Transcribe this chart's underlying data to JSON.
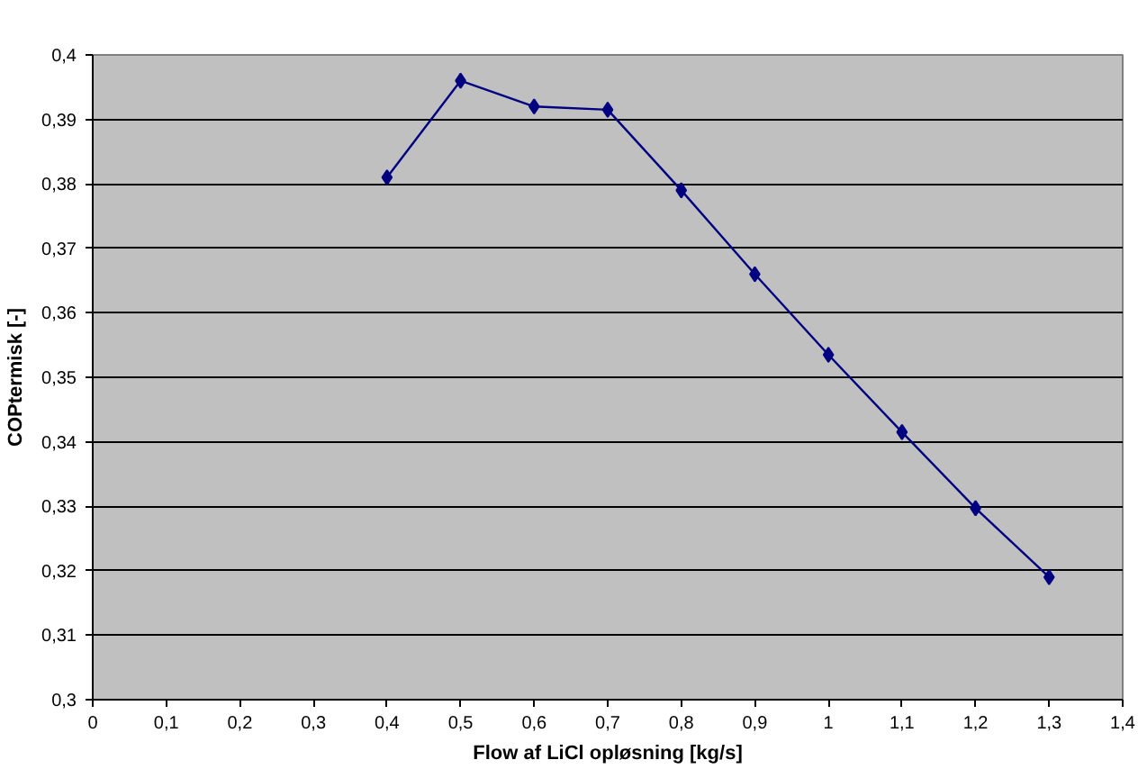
{
  "chart_data": {
    "type": "line",
    "xlabel": "Flow af LiCl opløsning [kg/s]",
    "ylabel": "COPtermisk [-]",
    "x": [
      0.4,
      0.5,
      0.6,
      0.7,
      0.8,
      0.9,
      1.0,
      1.1,
      1.2,
      1.3
    ],
    "series": [
      {
        "color": "#000080",
        "values": [
          0.381,
          0.396,
          0.392,
          0.3915,
          0.379,
          0.366,
          0.3535,
          0.3415,
          0.3297,
          0.319
        ]
      }
    ],
    "xlim": [
      0,
      1.4
    ],
    "ylim": [
      0.3,
      0.4
    ],
    "xticks": [
      0,
      {
        "value": 0.1,
        "label": "0,1"
      },
      {
        "value": 0.2,
        "label": "0,2"
      },
      {
        "value": 0.3,
        "label": "0,3"
      },
      {
        "value": 0.4,
        "label": "0,4"
      },
      {
        "value": 0.5,
        "label": "0,5"
      },
      {
        "value": 0.6,
        "label": "0,6"
      },
      {
        "value": 0.7,
        "label": "0,7"
      },
      {
        "value": 0.8,
        "label": "0,8"
      },
      {
        "value": 0.9,
        "label": "0,9"
      },
      1,
      {
        "value": 1.1,
        "label": "1,1"
      },
      {
        "value": 1.2,
        "label": "1,2"
      },
      {
        "value": 1.3,
        "label": "1,3"
      },
      {
        "value": 1.4,
        "label": "1,4"
      }
    ],
    "yticks": [
      {
        "value": 0.3,
        "label": "0,3"
      },
      {
        "value": 0.31,
        "label": "0,31"
      },
      {
        "value": 0.32,
        "label": "0,32"
      },
      {
        "value": 0.33,
        "label": "0,33"
      },
      {
        "value": 0.34,
        "label": "0,34"
      },
      {
        "value": 0.35,
        "label": "0,35"
      },
      {
        "value": 0.36,
        "label": "0,36"
      },
      {
        "value": 0.37,
        "label": "0,37"
      },
      {
        "value": 0.38,
        "label": "0,38"
      },
      {
        "value": 0.39,
        "label": "0,39"
      },
      {
        "value": 0.4,
        "label": "0,4"
      }
    ],
    "grid": "y",
    "marker": "diamond",
    "line_style": "solid"
  }
}
